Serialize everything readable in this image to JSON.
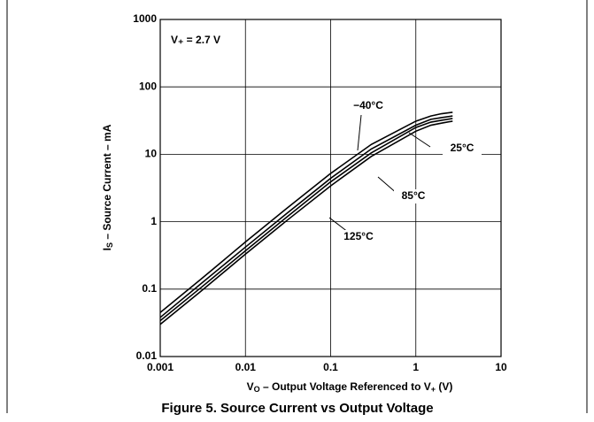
{
  "chart_data": {
    "type": "line",
    "caption": "Figure 5. Source Current vs Output Voltage",
    "condition": "V₊ = 2.7 V",
    "ylabel": {
      "symbol": "I",
      "subscript": "S",
      "text": " – Source Current – mA"
    },
    "xlabel": {
      "symbol": "V",
      "subscript": "O",
      "text": " – Output Voltage Referenced to V",
      "subscript2": "+",
      "unit": " (V)"
    },
    "xscale": "log",
    "yscale": "log",
    "grid": true,
    "xlim": [
      0.001,
      10
    ],
    "xticks": [
      0.001,
      0.01,
      0.1,
      1,
      10
    ],
    "ylim": [
      0.01,
      1000
    ],
    "yticks": [
      0.01,
      0.1,
      1,
      10,
      100,
      1000
    ],
    "x": [
      0.001,
      0.003,
      0.01,
      0.03,
      0.1,
      0.3,
      1,
      1.5,
      2,
      2.7
    ],
    "series": [
      {
        "name": "−40°C",
        "color": "#000000",
        "values": [
          0.045,
          0.14,
          0.5,
          1.55,
          5.2,
          14,
          31,
          37,
          40,
          42
        ]
      },
      {
        "name": "25°C",
        "color": "#000000",
        "values": [
          0.038,
          0.12,
          0.42,
          1.3,
          4.4,
          12,
          27,
          33,
          35,
          37
        ]
      },
      {
        "name": "85°C",
        "color": "#000000",
        "values": [
          0.034,
          0.105,
          0.37,
          1.15,
          3.9,
          10.5,
          25,
          30,
          32,
          34
        ]
      },
      {
        "name": "125°C",
        "color": "#000000",
        "values": [
          0.03,
          0.093,
          0.33,
          1.02,
          3.4,
          9.3,
          22,
          27,
          29,
          31
        ]
      }
    ]
  }
}
